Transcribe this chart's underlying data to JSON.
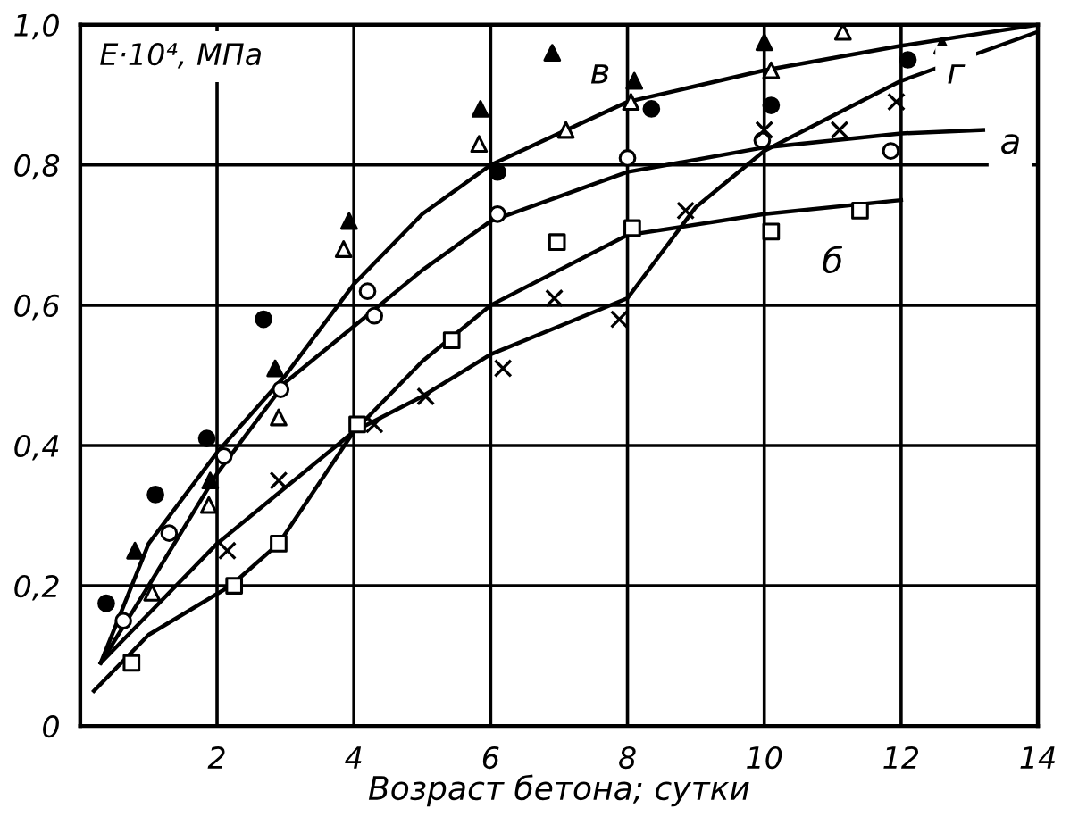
{
  "chart_data": {
    "type": "scatter",
    "ylabel": "E·10⁴, МПа",
    "xlabel": "Возраст бетона; сутки",
    "xlim": [
      0,
      14
    ],
    "ylim": [
      0,
      1.0
    ],
    "xticks": [
      {
        "value": 0,
        "label": null
      },
      2,
      4,
      6,
      8,
      10,
      12,
      14
    ],
    "yticks": [
      {
        "value": 0,
        "label": "0"
      },
      {
        "value": 0.2,
        "label": "0,2"
      },
      {
        "value": 0.4,
        "label": "0,4"
      },
      {
        "value": 0.6,
        "label": "0,6"
      },
      {
        "value": 0.8,
        "label": "0,8"
      },
      {
        "value": 1.0,
        "label": "1,0"
      }
    ],
    "grid": true,
    "series": [
      {
        "type": "line",
        "color": "#000000",
        "marker": "none",
        "line_style": "solid",
        "x": [
          0.3,
          1,
          2,
          3,
          4,
          5,
          6,
          8,
          10,
          12,
          14
        ],
        "values": [
          0.09,
          0.26,
          0.39,
          0.5,
          0.63,
          0.73,
          0.8,
          0.89,
          0.935,
          0.97,
          1.0
        ]
      },
      {
        "type": "line",
        "color": "#000000",
        "marker": "none",
        "line_style": "solid",
        "x": [
          0.3,
          1,
          2,
          3,
          4,
          5,
          6,
          8,
          10,
          12,
          13.2
        ],
        "values": [
          0.09,
          0.2,
          0.36,
          0.49,
          0.57,
          0.65,
          0.72,
          0.79,
          0.825,
          0.845,
          0.85
        ]
      },
      {
        "type": "line",
        "color": "#000000",
        "marker": "none",
        "line_style": "solid",
        "x": [
          0.2,
          1,
          2.2,
          2.9,
          4,
          5,
          6,
          8,
          10,
          12
        ],
        "values": [
          0.05,
          0.13,
          0.2,
          0.26,
          0.42,
          0.52,
          0.6,
          0.7,
          0.73,
          0.75
        ]
      },
      {
        "type": "line",
        "color": "#000000",
        "marker": "none",
        "line_style": "solid",
        "x": [
          0.3,
          1,
          2,
          3,
          4,
          5,
          6,
          7,
          8,
          9,
          10,
          12,
          14
        ],
        "values": [
          0.09,
          0.16,
          0.26,
          0.34,
          0.42,
          0.47,
          0.53,
          0.57,
          0.61,
          0.74,
          0.82,
          0.92,
          0.99
        ]
      },
      {
        "color": "#000000",
        "marker": "circle",
        "x": [
          0.38,
          1.1,
          1.85,
          2.68,
          6.1,
          8.35,
          10.1,
          12.1
        ],
        "values": [
          0.175,
          0.33,
          0.41,
          0.58,
          0.79,
          0.88,
          0.885,
          0.95
        ]
      },
      {
        "color": "#ffffff",
        "marker": "circle",
        "x": [
          0.63,
          1.3,
          2.1,
          2.93,
          4.2,
          4.3,
          6.1,
          8.0,
          9.97,
          11.85
        ],
        "values": [
          0.15,
          0.275,
          0.385,
          0.48,
          0.62,
          0.585,
          0.73,
          0.81,
          0.835,
          0.82
        ]
      },
      {
        "color": "#000000",
        "marker": "triangle",
        "x": [
          0.8,
          1.9,
          2.85,
          3.93,
          5.85,
          6.9,
          8.1,
          10.0,
          12.6
        ],
        "values": [
          0.25,
          0.35,
          0.51,
          0.72,
          0.88,
          0.96,
          0.92,
          0.975,
          0.97
        ]
      },
      {
        "color": "#ffffff",
        "marker": "triangle",
        "x": [
          1.05,
          1.88,
          2.9,
          3.85,
          5.83,
          7.1,
          8.05,
          10.1,
          11.15
        ],
        "values": [
          0.19,
          0.315,
          0.44,
          0.68,
          0.83,
          0.85,
          0.89,
          0.935,
          0.99
        ]
      },
      {
        "color": "#ffffff",
        "marker": "square",
        "x": [
          0.75,
          2.25,
          2.9,
          4.05,
          5.43,
          6.97,
          8.07,
          10.1,
          11.4
        ],
        "values": [
          0.09,
          0.2,
          0.26,
          0.43,
          0.55,
          0.69,
          0.71,
          0.705,
          0.735
        ]
      },
      {
        "color": "#000000",
        "marker": "cross",
        "x": [
          2.15,
          2.9,
          4.3,
          5.05,
          6.18,
          6.93,
          7.88,
          8.85,
          10.0,
          11.1,
          11.93
        ],
        "values": [
          0.25,
          0.35,
          0.43,
          0.47,
          0.51,
          0.61,
          0.58,
          0.735,
          0.85,
          0.85,
          0.89
        ]
      }
    ],
    "annotations": [
      {
        "text": "в",
        "x": 7.6,
        "y": 0.93
      },
      {
        "text": "а",
        "x": 13.6,
        "y": 0.83
      },
      {
        "text": "б",
        "x": 11.0,
        "y": 0.66
      },
      {
        "text": "г",
        "x": 12.8,
        "y": 0.93
      }
    ]
  }
}
